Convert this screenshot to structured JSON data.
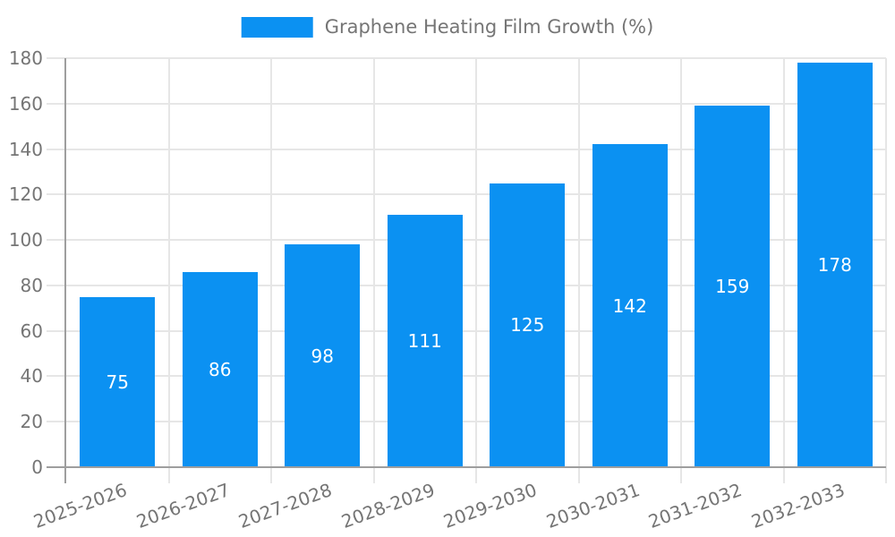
{
  "chart_data": {
    "type": "bar",
    "title": "Graphene Heating Film Growth (%)",
    "categories": [
      "2025-2026",
      "2026-2027",
      "2027-2028",
      "2028-2029",
      "2029-2030",
      "2030-2031",
      "2031-2032",
      "2032-2033"
    ],
    "values": [
      75,
      86,
      98,
      111,
      125,
      142,
      159,
      178
    ],
    "xlabel": "",
    "ylabel": "",
    "ylim": [
      0,
      180
    ],
    "yticks": [
      0,
      20,
      40,
      60,
      80,
      100,
      120,
      140,
      160,
      180
    ],
    "grid": true,
    "legend_position": "top-center",
    "value_labels": "inside-center",
    "bar_color": "#0b91f2",
    "value_label_color": "#ffffff",
    "text_color": "#757575",
    "axis_color": "#9e9e9e",
    "grid_color": "#e6e6e6",
    "background_color": "#ffffff"
  }
}
